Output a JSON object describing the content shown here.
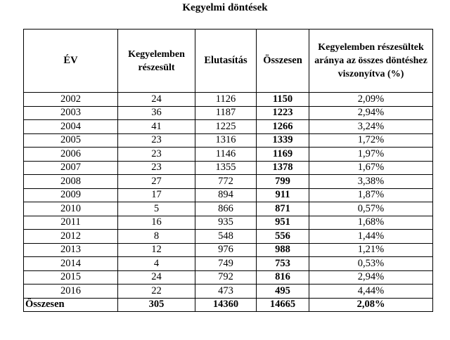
{
  "title": "Kegyelmi döntések",
  "headers": {
    "year": "ÉV",
    "granted": "Kegyelemben részesült",
    "rejected": "Elutasítás",
    "total": "Összesen",
    "ratio": "Kegyelemben részesültek aránya az összes döntéshez viszonyítva (%)"
  },
  "rows": [
    {
      "year": "2002",
      "granted": "24",
      "rejected": "1126",
      "total": "1150",
      "ratio": "2,09%"
    },
    {
      "year": "2003",
      "granted": "36",
      "rejected": "1187",
      "total": "1223",
      "ratio": "2,94%"
    },
    {
      "year": "2004",
      "granted": "41",
      "rejected": "1225",
      "total": "1266",
      "ratio": "3,24%"
    },
    {
      "year": "2005",
      "granted": "23",
      "rejected": "1316",
      "total": "1339",
      "ratio": "1,72%"
    },
    {
      "year": "2006",
      "granted": "23",
      "rejected": "1146",
      "total": "1169",
      "ratio": "1,97%"
    },
    {
      "year": "2007",
      "granted": "23",
      "rejected": "1355",
      "total": "1378",
      "ratio": "1,67%"
    },
    {
      "year": "2008",
      "granted": "27",
      "rejected": "772",
      "total": "799",
      "ratio": "3,38%"
    },
    {
      "year": "2009",
      "granted": "17",
      "rejected": "894",
      "total": "911",
      "ratio": "1,87%"
    },
    {
      "year": "2010",
      "granted": "5",
      "rejected": "866",
      "total": "871",
      "ratio": "0,57%"
    },
    {
      "year": "2011",
      "granted": "16",
      "rejected": "935",
      "total": "951",
      "ratio": "1,68%"
    },
    {
      "year": "2012",
      "granted": "8",
      "rejected": "548",
      "total": "556",
      "ratio": "1,44%"
    },
    {
      "year": "2013",
      "granted": "12",
      "rejected": "976",
      "total": "988",
      "ratio": "1,21%"
    },
    {
      "year": "2014",
      "granted": "4",
      "rejected": "749",
      "total": "753",
      "ratio": "0,53%"
    },
    {
      "year": "2015",
      "granted": "24",
      "rejected": "792",
      "total": "816",
      "ratio": "2,94%"
    },
    {
      "year": "2016",
      "granted": "22",
      "rejected": "473",
      "total": "495",
      "ratio": "4,44%"
    }
  ],
  "total_row": {
    "label": "Összesen",
    "granted": "305",
    "rejected": "14360",
    "total": "14665",
    "ratio": "2,08%"
  }
}
